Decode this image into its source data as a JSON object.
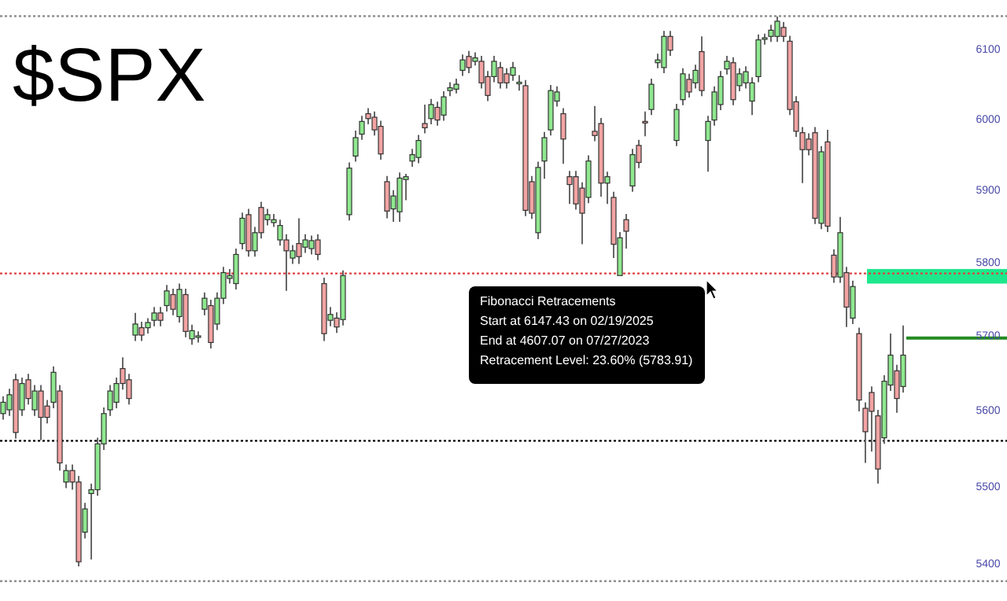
{
  "chart_data": {
    "type": "candlestick",
    "title": "$SPX",
    "log": "y",
    "tick_labels": "y",
    "grid": false,
    "categories": [
      null,
      null,
      null,
      null,
      null,
      null,
      null,
      null,
      null,
      null,
      null,
      null,
      null,
      null,
      null,
      null,
      null,
      null,
      null,
      null,
      null,
      null,
      null,
      null,
      null,
      null,
      null,
      null,
      null,
      null,
      null,
      null,
      null,
      null,
      null,
      null,
      null,
      null,
      null,
      null,
      null,
      null,
      null,
      null,
      null,
      null,
      null,
      null,
      null,
      null,
      null,
      null,
      null,
      null,
      null,
      null,
      null,
      null,
      null,
      null,
      null,
      null,
      null,
      null,
      null,
      null,
      null,
      null,
      null,
      null,
      null,
      null,
      null,
      null,
      null,
      null,
      null,
      null,
      null,
      null,
      null,
      null,
      null,
      null,
      null,
      null,
      null,
      null,
      null,
      null,
      null,
      null,
      null,
      null,
      null,
      null,
      null,
      null,
      null,
      null,
      null,
      null,
      null,
      null,
      null,
      null,
      null,
      null,
      null,
      null,
      null,
      null,
      null,
      null,
      null,
      null,
      null,
      null,
      null,
      null,
      null,
      null,
      null,
      null,
      null,
      null,
      null,
      null,
      null,
      null,
      null,
      null,
      null,
      null,
      null,
      null,
      null,
      null,
      null,
      null,
      null,
      null,
      null,
      null,
      null,
      null,
      null,
      null,
      null,
      null,
      null,
      null,
      null,
      null,
      null,
      null,
      null,
      null,
      null,
      null
    ],
    "ohlc": [
      [
        5595,
        5618,
        5587,
        5610
      ],
      [
        5600,
        5628,
        5592,
        5620
      ],
      [
        5640,
        5648,
        5562,
        5570
      ],
      [
        5600,
        5643,
        5592,
        5635
      ],
      [
        5640,
        5648,
        5607,
        5615
      ],
      [
        5600,
        5633,
        5592,
        5625
      ],
      [
        5625,
        5633,
        5560,
        5590
      ],
      [
        5605,
        5613,
        5582,
        5590
      ],
      [
        5610,
        5658,
        5602,
        5650
      ],
      [
        5625,
        5633,
        5520,
        5530
      ],
      [
        5505,
        5528,
        5497,
        5520
      ],
      [
        5520,
        5528,
        5495,
        5505
      ],
      [
        5505,
        5513,
        5396,
        5402
      ],
      [
        5440,
        5478,
        5432,
        5470
      ],
      [
        5490,
        5503,
        5405,
        5495
      ],
      [
        5495,
        5563,
        5487,
        5555
      ],
      [
        5555,
        5603,
        5547,
        5595
      ],
      [
        5600,
        5633,
        5592,
        5625
      ],
      [
        5610,
        5643,
        5602,
        5635
      ],
      [
        5655,
        5670,
        5627,
        5635
      ],
      [
        5640,
        5648,
        5607,
        5615
      ],
      [
        5700,
        5730,
        5692,
        5715
      ],
      [
        5710,
        5718,
        5692,
        5700
      ],
      [
        5710,
        5723,
        5702,
        5717
      ],
      [
        5720,
        5738,
        5712,
        5730
      ],
      [
        5730,
        5738,
        5712,
        5720
      ],
      [
        5740,
        5768,
        5732,
        5760
      ],
      [
        5755,
        5763,
        5727,
        5735
      ],
      [
        5725,
        5770,
        5717,
        5762
      ],
      [
        5755,
        5763,
        5697,
        5705
      ],
      [
        5695,
        5714,
        5687,
        5706
      ],
      [
        5697,
        5705,
        5690,
        5699
      ],
      [
        5735,
        5758,
        5727,
        5750
      ],
      [
        5740,
        5748,
        5682,
        5690
      ],
      [
        5715,
        5758,
        5707,
        5750
      ],
      [
        5750,
        5793,
        5742,
        5785
      ],
      [
        5777,
        5790,
        5770,
        5781
      ],
      [
        5770,
        5818,
        5762,
        5810
      ],
      [
        5825,
        5868,
        5817,
        5860
      ],
      [
        5865,
        5873,
        5807,
        5815
      ],
      [
        5815,
        5848,
        5807,
        5840
      ],
      [
        5875,
        5883,
        5832,
        5840
      ],
      [
        5858,
        5873,
        5850,
        5865
      ],
      [
        5854,
        5866,
        5848,
        5858
      ],
      [
        5830,
        5858,
        5822,
        5850
      ],
      [
        5830,
        5838,
        5760,
        5815
      ],
      [
        5805,
        5823,
        5797,
        5815
      ],
      [
        5825,
        5860,
        5797,
        5807
      ],
      [
        5820,
        5838,
        5812,
        5830
      ],
      [
        5818,
        5836,
        5810,
        5829
      ],
      [
        5830,
        5838,
        5802,
        5810
      ],
      [
        5770,
        5778,
        5692,
        5702
      ],
      [
        5720,
        5738,
        5712,
        5728
      ],
      [
        5723,
        5731,
        5703,
        5711
      ],
      [
        5721,
        5788,
        5713,
        5781
      ],
      [
        5865,
        5938,
        5857,
        5930
      ],
      [
        5947,
        5983,
        5939,
        5973
      ],
      [
        5978,
        6004,
        5970,
        5996
      ],
      [
        6007,
        6015,
        5992,
        6000
      ],
      [
        6002,
        6010,
        5976,
        5984
      ],
      [
        5989,
        5997,
        5942,
        5950
      ],
      [
        5911,
        5919,
        5860,
        5870
      ],
      [
        5873,
        5899,
        5855,
        5891
      ],
      [
        5869,
        5924,
        5855,
        5916
      ],
      [
        5914,
        5922,
        5885,
        5918
      ],
      [
        5940,
        5957,
        5932,
        5949
      ],
      [
        5945,
        5977,
        5937,
        5969
      ],
      [
        5993,
        6020,
        5979,
        5987
      ],
      [
        6000,
        6028,
        5992,
        6020
      ],
      [
        6016,
        6024,
        5990,
        5998
      ],
      [
        6005,
        6039,
        5997,
        6031
      ],
      [
        6040,
        6052,
        6032,
        6044
      ],
      [
        6042,
        6057,
        6036,
        6049
      ],
      [
        6069,
        6092,
        6061,
        6084
      ],
      [
        6089,
        6097,
        6065,
        6073
      ],
      [
        6082,
        6095,
        6076,
        6087
      ],
      [
        6082,
        6090,
        6043,
        6051
      ],
      [
        6060,
        6068,
        6025,
        6033
      ],
      [
        6060,
        6090,
        6052,
        6082
      ],
      [
        6073,
        6081,
        6043,
        6051
      ],
      [
        6064,
        6072,
        6043,
        6051
      ],
      [
        6062,
        6081,
        6054,
        6073
      ],
      [
        6051,
        6062,
        6040,
        6052
      ],
      [
        6047,
        6055,
        5863,
        5871
      ],
      [
        5911,
        5919,
        5859,
        5867
      ],
      [
        5840,
        5939,
        5831,
        5931
      ],
      [
        5940,
        5981,
        5915,
        5973
      ],
      [
        5984,
        6048,
        5976,
        6040
      ],
      [
        6025,
        6046,
        6017,
        6038
      ],
      [
        6007,
        6015,
        5936,
        5971
      ],
      [
        5918,
        5926,
        5880,
        5907
      ],
      [
        5918,
        5926,
        5872,
        5880
      ],
      [
        5902,
        5910,
        5824,
        5867
      ],
      [
        5889,
        5948,
        5881,
        5940
      ],
      [
        5982,
        6018,
        5968,
        5976
      ],
      [
        5993,
        6001,
        5890,
        5909
      ],
      [
        5909,
        5925,
        5880,
        5918
      ],
      [
        5889,
        5897,
        5805,
        5824
      ],
      [
        5781,
        5841,
        5781,
        5833
      ],
      [
        5858,
        5866,
        5818,
        5842
      ],
      [
        5905,
        5957,
        5897,
        5949
      ],
      [
        5962,
        5970,
        5930,
        5938
      ],
      [
        5996,
        6010,
        5975,
        5995
      ],
      [
        6013,
        6057,
        6005,
        6049
      ],
      [
        6080,
        6093,
        6072,
        6084
      ],
      [
        6073,
        6126,
        6065,
        6118
      ],
      [
        6118,
        6126,
        6090,
        6098
      ],
      [
        5969,
        6021,
        5961,
        6013
      ],
      [
        6027,
        6072,
        6019,
        6064
      ],
      [
        6056,
        6064,
        6030,
        6038
      ],
      [
        6051,
        6077,
        6043,
        6069
      ],
      [
        6096,
        6118,
        6032,
        6040
      ],
      [
        5969,
        6004,
        5925,
        5996
      ],
      [
        5998,
        6046,
        5990,
        6038
      ],
      [
        6020,
        6068,
        6012,
        6060
      ],
      [
        6071,
        6090,
        6063,
        6082
      ],
      [
        6080,
        6088,
        6019,
        6027
      ],
      [
        6047,
        6072,
        6039,
        6064
      ],
      [
        6051,
        6075,
        6043,
        6067
      ],
      [
        6025,
        6059,
        6005,
        6051
      ],
      [
        6060,
        6121,
        6052,
        6113
      ],
      [
        6114,
        6122,
        6106,
        6116
      ],
      [
        6118,
        6135,
        6110,
        6127
      ],
      [
        6118,
        6147,
        6110,
        6140
      ],
      [
        6131,
        6139,
        6110,
        6118
      ],
      [
        6111,
        6119,
        6005,
        6013
      ],
      [
        6024,
        6032,
        5974,
        5982
      ],
      [
        5980,
        5988,
        5909,
        5956
      ],
      [
        5971,
        5979,
        5948,
        5956
      ],
      [
        5980,
        5988,
        5852,
        5860
      ],
      [
        5853,
        5961,
        5845,
        5953
      ],
      [
        5967,
        5984,
        5841,
        5849
      ],
      [
        5809,
        5817,
        5771,
        5779
      ],
      [
        5779,
        5862,
        5771,
        5840
      ],
      [
        5785,
        5793,
        5711,
        5738
      ],
      [
        5723,
        5774,
        5715,
        5766
      ],
      [
        5702,
        5710,
        5598,
        5613
      ],
      [
        5602,
        5610,
        5530,
        5571
      ],
      [
        5623,
        5631,
        5545,
        5598
      ],
      [
        5592,
        5600,
        5503,
        5522
      ],
      [
        5563,
        5646,
        5555,
        5638
      ],
      [
        5633,
        5702,
        5625,
        5673
      ],
      [
        5652,
        5660,
        5596,
        5615
      ],
      [
        5631,
        5713,
        5623,
        5673
      ],
      null,
      null,
      null,
      null,
      null,
      null,
      null,
      null,
      null,
      null,
      null,
      null,
      null,
      null,
      null,
      null
    ],
    "ylim": [
      5352,
      6171
    ],
    "yticks": [
      5400,
      5500,
      5600,
      5700,
      5800,
      5900,
      6000,
      6100
    ],
    "ref_lines": [
      {
        "axis": "y",
        "value": 6147.43,
        "color": "#909090",
        "line_style": "dotted"
      },
      {
        "axis": "y",
        "value": 5783.91,
        "color": "#e04040",
        "line_style": "dotted"
      },
      {
        "axis": "y",
        "value": 5559.01,
        "color": "#000000",
        "line_style": "dotted"
      },
      {
        "axis": "y",
        "value": 5377.25,
        "color": "#909090",
        "line_style": "dotted"
      },
      {
        "axis": "y",
        "value": 5696,
        "color": "#228b22",
        "line_style": "solid"
      }
    ],
    "bands": [
      {
        "axis": "y",
        "from": 5770,
        "to": 5790,
        "color": "#1ee88c"
      }
    ],
    "annotations": [
      "Fibonacci Retracements",
      "Start at 6147.43 on 02/19/2025",
      "End at 4607.07 on 07/27/2023",
      "Retracement Level: 23.60% (5783.91)"
    ]
  }
}
